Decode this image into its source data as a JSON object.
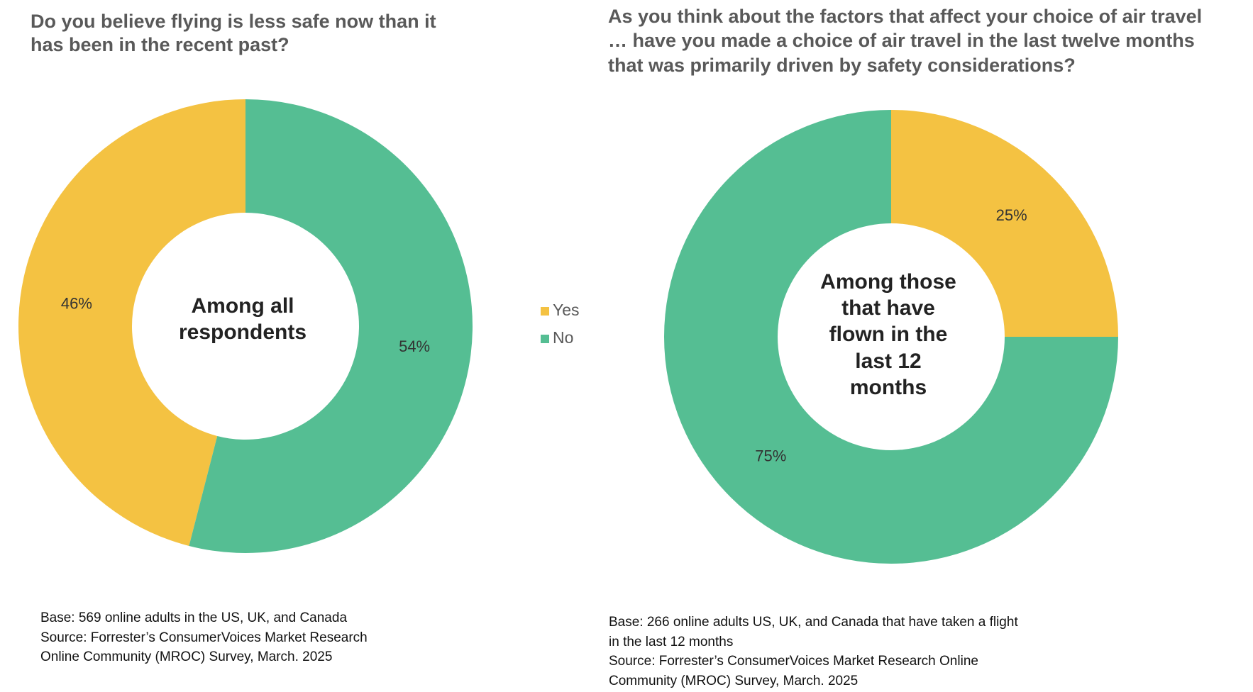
{
  "chart_data": [
    {
      "type": "donut",
      "title": [
        "Do you believe flying is less safe now than it",
        "has been in the recent past?"
      ],
      "categories": [
        "Yes",
        "No"
      ],
      "colors": [
        "#F4C242",
        "#55BE93"
      ],
      "values": [
        46,
        54
      ],
      "value_labels": [
        "46%",
        "54%"
      ],
      "direction": "counterclockwise",
      "center_label": [
        "Among all",
        "respondents"
      ],
      "notes": [
        " Base: 569 online adults in the US, UK, and Canada",
        "Source: Forrester’s ConsumerVoices Market Research",
        "Online Community (MROC) Survey, March. 2025"
      ]
    },
    {
      "type": "donut",
      "title": [
        "As you think about the factors that affect your choice of air travel",
        "… have you made a choice of air travel in the last twelve months",
        "that was primarily driven by safety considerations?"
      ],
      "categories": [
        "Yes",
        "No"
      ],
      "colors": [
        "#F4C242",
        "#55BE93"
      ],
      "values": [
        25,
        75
      ],
      "value_labels": [
        "25%",
        "75%"
      ],
      "direction": "clockwise",
      "center_label": [
        "Among those",
        "that have",
        "flown in the",
        "last 12",
        "months"
      ],
      "notes": [
        " Base: 266 online adults US, UK, and Canada that have taken a flight",
        "in the last 12 months",
        "Source: Forrester’s ConsumerVoices Market Research Online",
        "Community (MROC) Survey, March. 2025"
      ]
    }
  ]
}
